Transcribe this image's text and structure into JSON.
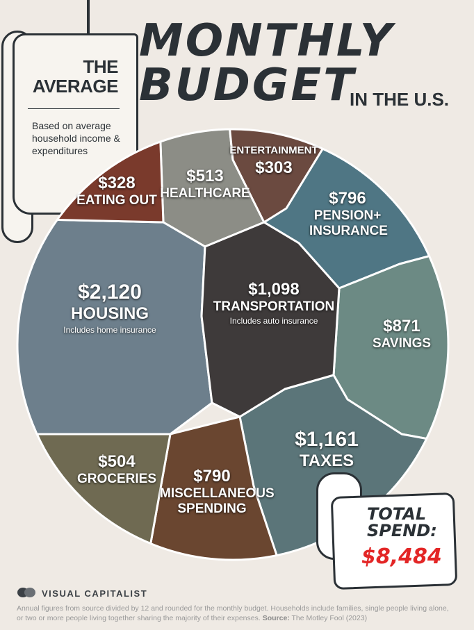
{
  "header": {
    "the_average": "THE AVERAGE",
    "title_line1": "MONTHLY",
    "title_line2": "BUDGET",
    "subtitle": "IN THE U.S.",
    "basis": "Based on average household income & expenditures"
  },
  "chart_data": {
    "type": "pie",
    "total_label": "TOTAL SPEND:",
    "total_value": "$8,484",
    "slices": [
      {
        "name": "HEALTHCARE",
        "value": 513,
        "amount": "$513",
        "note": "",
        "color": "#8c8d86"
      },
      {
        "name": "ENTERTAINMENT",
        "value": 303,
        "amount": "$303",
        "note": "",
        "color": "#6b4a40"
      },
      {
        "name": "PENSION+ INSURANCE",
        "value": 796,
        "amount": "$796",
        "note": "",
        "color": "#4f7684"
      },
      {
        "name": "SAVINGS",
        "value": 871,
        "amount": "$871",
        "note": "",
        "color": "#6c8a84"
      },
      {
        "name": "TAXES",
        "value": 1161,
        "amount": "$1,161",
        "note": "",
        "color": "#5b7579"
      },
      {
        "name": "MISCELLANEOUS SPENDING",
        "value": 790,
        "amount": "$790",
        "note": "",
        "color": "#6a4630"
      },
      {
        "name": "GROCERIES",
        "value": 504,
        "amount": "$504",
        "note": "",
        "color": "#6f6a52"
      },
      {
        "name": "HOUSING",
        "value": 2120,
        "amount": "$2,120",
        "note": "Includes home insurance",
        "color": "#6d7f8c"
      },
      {
        "name": "EATING OUT",
        "value": 328,
        "amount": "$328",
        "note": "",
        "color": "#7a3a2c"
      },
      {
        "name": "TRANSPORTATION",
        "value": 1098,
        "amount": "$1,098",
        "note": "Includes auto insurance",
        "color": "#3e3a3a"
      }
    ]
  },
  "brand": {
    "name": "VISUAL CAPITALIST",
    "logo_icon": "visual-capitalist-logo-icon"
  },
  "footnote": {
    "text": "Annual figures from source divided by 12 and rounded for the monthly budget. Households include families, single people living alone, or two or more people living together sharing the majority of their expenses.",
    "source_label": "Source:",
    "source": "The Motley Fool (2023)"
  }
}
